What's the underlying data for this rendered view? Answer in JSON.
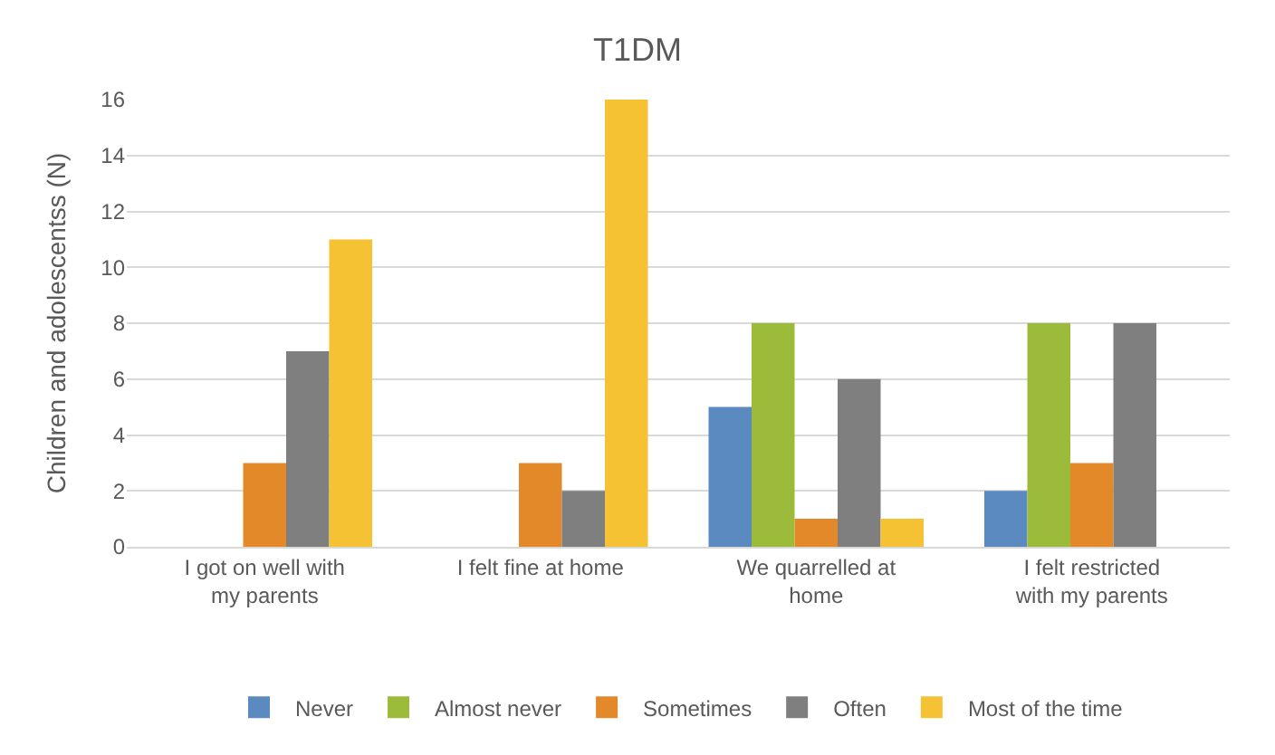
{
  "chart_data": {
    "type": "bar",
    "title": "T1DM",
    "ylabel": "Children and adolescentss (N)",
    "categories": [
      "I got on well with my parents",
      "I felt fine at home",
      "We quarrelled at home",
      "I felt restricted with my parents"
    ],
    "series": [
      {
        "name": "Never",
        "color": "#5a8ac0",
        "values": [
          0,
          0,
          5,
          2
        ]
      },
      {
        "name": "Almost never",
        "color": "#9dbb3a",
        "values": [
          0,
          0,
          8,
          8
        ]
      },
      {
        "name": "Sometimes",
        "color": "#e3892a",
        "values": [
          3,
          3,
          1,
          3
        ]
      },
      {
        "name": "Often",
        "color": "#7f7f7f",
        "values": [
          7,
          2,
          6,
          8
        ]
      },
      {
        "name": "Most of the time",
        "color": "#f4c232",
        "values": [
          11,
          16,
          1,
          0
        ]
      }
    ],
    "ylim": [
      0,
      16
    ],
    "yticks": [
      0,
      2,
      4,
      6,
      8,
      10,
      12,
      14,
      16
    ],
    "grid": "y",
    "legend": "bottom"
  }
}
